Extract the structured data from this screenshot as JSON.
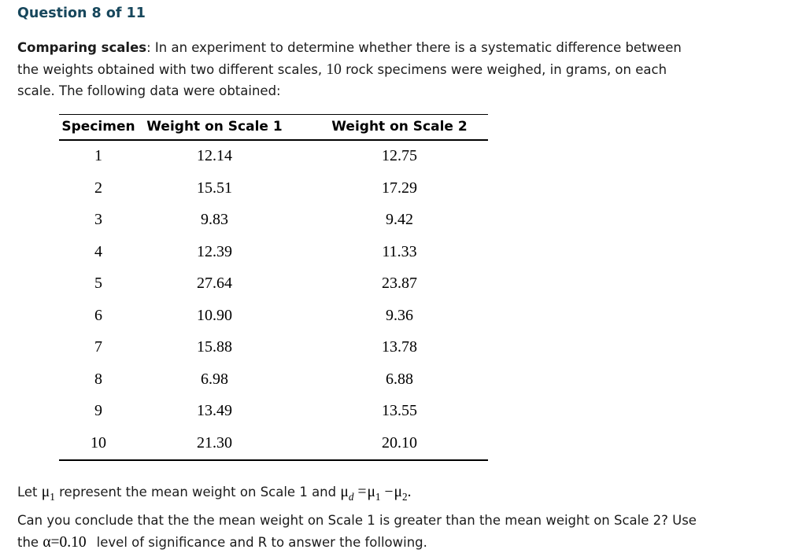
{
  "header": {
    "title": "Question 8 of 11"
  },
  "intro": {
    "lead": "Comparing scales",
    "colon": ": ",
    "line1_rest": "In an experiment to determine whether there is a systematic difference between",
    "line2_before_count": "the weights obtained with two different scales, ",
    "specimen_count": "10",
    "line2_after_count": " rock specimens were weighed, in grams, on each",
    "line3": "scale. The following data were obtained:"
  },
  "table": {
    "columns": [
      "Specimen",
      "Weight on Scale 1",
      "Weight on Scale 2"
    ],
    "rows": [
      [
        "1",
        "12.14",
        "12.75"
      ],
      [
        "2",
        "15.51",
        "17.29"
      ],
      [
        "3",
        "9.83",
        "9.42"
      ],
      [
        "4",
        "12.39",
        "11.33"
      ],
      [
        "5",
        "27.64",
        "23.87"
      ],
      [
        "6",
        "10.90",
        "9.36"
      ],
      [
        "7",
        "15.88",
        "13.78"
      ],
      [
        "8",
        "6.98",
        "6.88"
      ],
      [
        "9",
        "13.49",
        "13.55"
      ],
      [
        "10",
        "21.30",
        "20.10"
      ]
    ]
  },
  "definitions": {
    "t1": "Let ",
    "mu": "μ",
    "sub_1": "1",
    "t2": " represent the mean weight on Scale 1 and ",
    "sub_d": "d",
    "equals": "=",
    "minus": "−",
    "sub_2": "2",
    "period": "."
  },
  "question": {
    "line1": "Can you conclude that the the mean weight on Scale 1 is greater than the mean weight on Scale 2? Use",
    "line2_before_alpha": "the ",
    "alpha": "α",
    "equals": "=",
    "alpha_value": "0.10",
    "line2_after_alpha": "level of significance and R to answer the following."
  },
  "colors": {
    "heading": "#17475c",
    "body_text": "#1b1b1b",
    "table_text": "#000000"
  }
}
